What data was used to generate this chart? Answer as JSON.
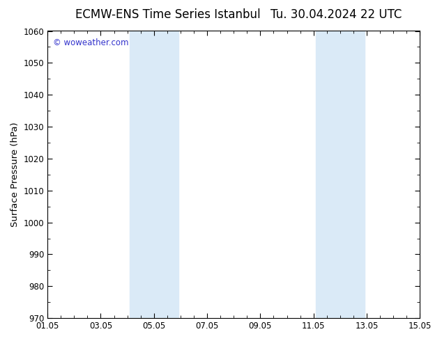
{
  "title_left": "ECMW-ENS Time Series Istanbul",
  "title_right": "Tu. 30.04.2024 22 UTC",
  "ylabel": "Surface Pressure (hPa)",
  "ylim": [
    970,
    1060
  ],
  "yticks": [
    970,
    980,
    990,
    1000,
    1010,
    1020,
    1030,
    1040,
    1050,
    1060
  ],
  "xlim_start": 0.0,
  "xlim_end": 14.0,
  "xtick_labels": [
    "01.05",
    "03.05",
    "05.05",
    "07.05",
    "09.05",
    "11.05",
    "13.05",
    "15.05"
  ],
  "xtick_positions": [
    0.0,
    2.0,
    4.0,
    6.0,
    8.0,
    10.0,
    12.0,
    14.0
  ],
  "shaded_regions": [
    {
      "xmin": 3.08,
      "xmax": 4.92,
      "color": "#daeaf7"
    },
    {
      "xmin": 10.08,
      "xmax": 11.92,
      "color": "#daeaf7"
    }
  ],
  "watermark_text": "© woweather.com",
  "watermark_color": "#3333cc",
  "background_color": "#ffffff",
  "plot_bg_color": "#ffffff",
  "title_fontsize": 12,
  "axis_label_fontsize": 9.5,
  "tick_fontsize": 8.5,
  "border_color": "#000000"
}
